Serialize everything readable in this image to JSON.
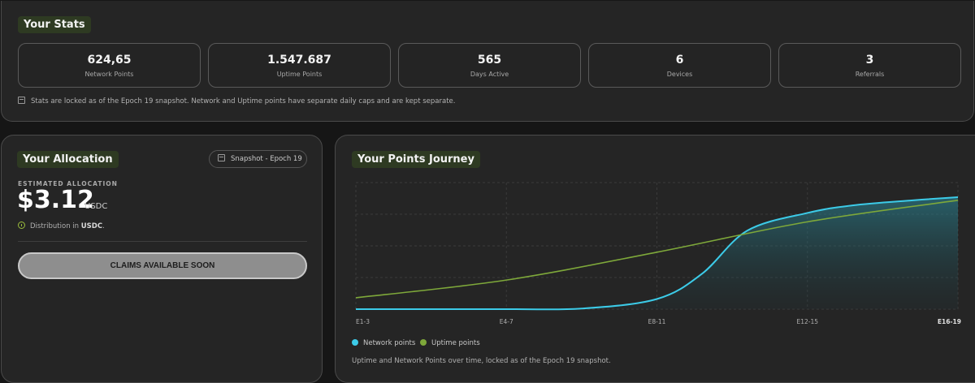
{
  "stats": {
    "title": "Your Stats",
    "cards": [
      {
        "value": "624,65",
        "label": "Network Points"
      },
      {
        "value": "1.547.687",
        "label": "Uptime Points"
      },
      {
        "value": "565",
        "label": "Days Active"
      },
      {
        "value": "6",
        "label": "Devices"
      },
      {
        "value": "3",
        "label": "Referrals"
      }
    ],
    "note": "Stats are locked as of the Epoch 19 snapshot. Network and Uptime points have separate daily caps and are kept separate."
  },
  "allocation": {
    "title": "Your Allocation",
    "snapshot_badge": "Snapshot - Epoch 19",
    "estimated_label": "ESTIMATED ALLOCATION",
    "amount": "$3.12",
    "unit": "USDC",
    "distribution_prefix": "Distribution in ",
    "distribution_currency": "USDC",
    "distribution_suffix": ".",
    "claim_button": "CLAIMS AVAILABLE SOON"
  },
  "journey": {
    "title": "Your Points Journey",
    "legend": {
      "network": "Network points",
      "uptime": "Uptime points"
    },
    "caption": "Uptime and Network Points over time, locked as of the Epoch 19 snapshot."
  },
  "chart_data": {
    "type": "line",
    "categories": [
      "E1-3",
      "E4-7",
      "E8-11",
      "E12-15",
      "E16-19"
    ],
    "x": [
      0,
      1,
      2,
      3,
      4
    ],
    "series": [
      {
        "name": "Network points",
        "color": "#3ccbe8",
        "x": [
          0,
          1,
          1.5,
          2,
          2.3,
          2.6,
          3,
          3.3,
          3.7,
          4
        ],
        "values": [
          0,
          0,
          0.5,
          8,
          28,
          62,
          76,
          82,
          86,
          88.5
        ]
      },
      {
        "name": "Uptime points",
        "color": "#7ea83a",
        "x": [
          0,
          1,
          2,
          3,
          4
        ],
        "values": [
          9,
          23,
          45,
          69,
          86
        ]
      }
    ],
    "ylim": [
      0,
      100
    ],
    "grid": true,
    "legend": "bottom-left",
    "colors": {
      "network": "#3ccbe8",
      "uptime": "#7ea83a"
    }
  }
}
